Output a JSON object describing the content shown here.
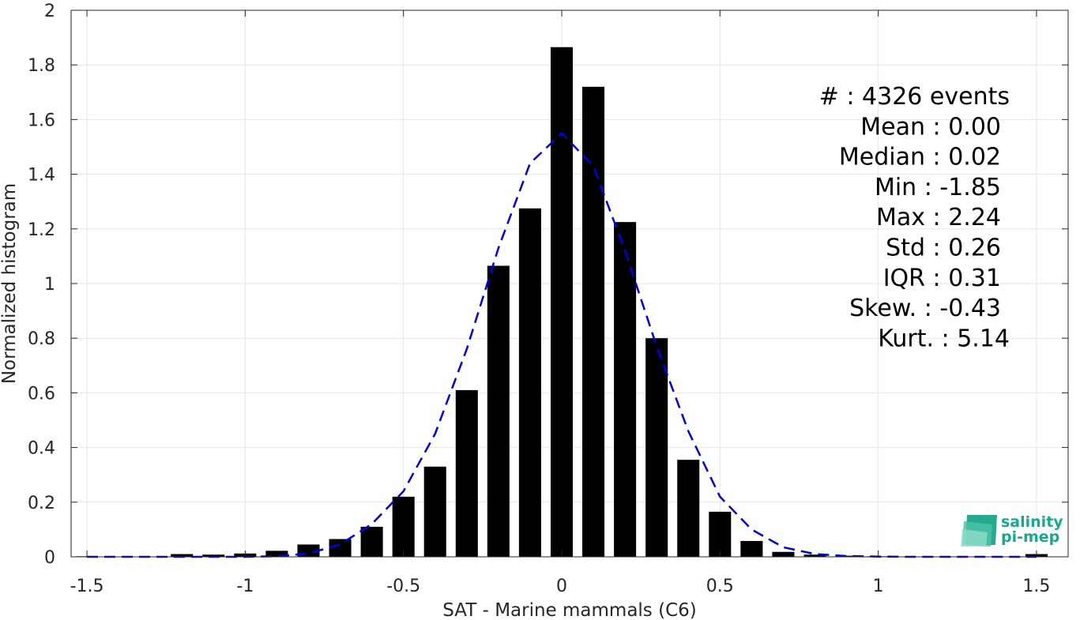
{
  "chart_data": {
    "type": "bar",
    "xlabel": "SAT - Marine mammals (C6)",
    "ylabel": "Normalized histogram",
    "xlim": [
      -1.55,
      1.6
    ],
    "ylim": [
      0,
      2
    ],
    "xticks": [
      -1.5,
      -1,
      -0.5,
      0,
      0.5,
      1,
      1.5
    ],
    "xtick_labels": [
      "-1.5",
      "-1",
      "-0.5",
      "0",
      "0.5",
      "1",
      "1.5"
    ],
    "yticks": [
      0,
      0.2,
      0.4,
      0.6,
      0.8,
      1,
      1.2,
      1.4,
      1.6,
      1.8,
      2
    ],
    "ytick_labels": [
      "0",
      "0.2",
      "0.4",
      "0.6",
      "0.8",
      "1",
      "1.2",
      "1.4",
      "1.6",
      "1.8",
      "2"
    ],
    "grid": true,
    "bar_width": 0.07,
    "x": [
      -1.5,
      -1.4,
      -1.3,
      -1.2,
      -1.1,
      -1.0,
      -0.9,
      -0.8,
      -0.7,
      -0.6,
      -0.5,
      -0.4,
      -0.3,
      -0.2,
      -0.1,
      0.0,
      0.1,
      0.2,
      0.3,
      0.4,
      0.5,
      0.6,
      0.7,
      0.8,
      0.9,
      1.0,
      1.1,
      1.2,
      1.3,
      1.4,
      1.5
    ],
    "values": [
      0.002,
      0.0,
      0.0,
      0.01,
      0.008,
      0.012,
      0.022,
      0.045,
      0.065,
      0.11,
      0.22,
      0.33,
      0.61,
      1.065,
      1.275,
      1.865,
      1.72,
      1.225,
      0.8,
      0.355,
      0.165,
      0.058,
      0.018,
      0.008,
      0.004,
      0.002,
      0.0,
      0.0,
      0.0,
      0.0,
      0.01
    ],
    "bar_color": "#000000",
    "fit_curve": {
      "style": "dashed",
      "color": "#0000e6",
      "x": [
        -1.5,
        -1.4,
        -1.3,
        -1.2,
        -1.1,
        -1.0,
        -0.9,
        -0.8,
        -0.7,
        -0.6,
        -0.5,
        -0.4,
        -0.3,
        -0.2,
        -0.1,
        0.0,
        0.1,
        0.2,
        0.3,
        0.4,
        0.5,
        0.6,
        0.7,
        0.8,
        0.9,
        1.0,
        1.1,
        1.2,
        1.3,
        1.4,
        1.5
      ],
      "y": [
        0.0,
        0.0,
        0.0,
        0.0,
        0.0,
        0.0,
        0.002,
        0.012,
        0.045,
        0.12,
        0.24,
        0.45,
        0.76,
        1.13,
        1.44,
        1.55,
        1.43,
        1.12,
        0.77,
        0.46,
        0.22,
        0.1,
        0.035,
        0.01,
        0.003,
        0.001,
        0.0,
        0.0,
        0.0,
        0.0,
        0.0
      ]
    }
  },
  "stats": [
    "#  : 4326 events",
    "Mean : 0.00",
    "Median : 0.02",
    "Min : -1.85",
    "Max : 2.24",
    "Std : 0.26",
    "IQR : 0.31",
    "Skew. : -0.43",
    "Kurt. : 5.14"
  ],
  "logo": {
    "line1": "salinity",
    "line2": "pi-mep",
    "color": "#1aa88f"
  }
}
